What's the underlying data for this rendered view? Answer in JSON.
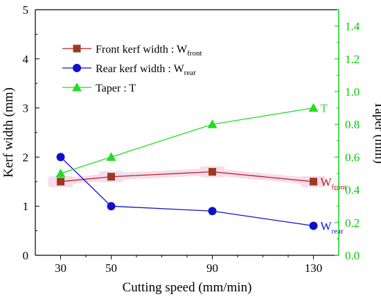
{
  "colors": {
    "front": "#b22222",
    "front_marker": "#9b3a1e",
    "rear": "#1010cc",
    "taper": "#22dd22",
    "taper_axis": "#00cc00",
    "highlight": "#f7dcec",
    "axis": "#000000"
  },
  "chart_data": {
    "type": "line",
    "x": [
      30,
      50,
      90,
      130
    ],
    "xlabel": "Cutting speed (mm/min)",
    "ylabel": "Kerf width (mm)",
    "y2label": "Taper (mm)",
    "xlim": [
      20,
      140
    ],
    "ylim": [
      0,
      5
    ],
    "y2lim": [
      0.0,
      1.5
    ],
    "xticks": [
      "30",
      "50",
      "90",
      "130"
    ],
    "yticks": [
      "0",
      "1",
      "2",
      "3",
      "4",
      "5"
    ],
    "y2ticks": [
      "0.0",
      "0.2",
      "0.4",
      "0.6",
      "0.8",
      "1.0",
      "1.2",
      "1.4"
    ],
    "series": [
      {
        "key": "front",
        "name": "Front kerf width : W",
        "name_sub": "front",
        "axis": "left",
        "marker": "square",
        "values": [
          1.5,
          1.6,
          1.7,
          1.5
        ],
        "end_label": "W",
        "end_label_sub": "front"
      },
      {
        "key": "rear",
        "name": "Rear kerf width : W",
        "name_sub": "rear",
        "axis": "left",
        "marker": "circle",
        "values": [
          2.0,
          1.0,
          0.9,
          0.6
        ],
        "end_label": "W",
        "end_label_sub": "rear"
      },
      {
        "key": "taper",
        "name": "Taper : T",
        "name_sub": "",
        "axis": "right",
        "marker": "triangle",
        "values": [
          0.5,
          0.6,
          0.8,
          0.9
        ],
        "end_label": "T",
        "end_label_sub": ""
      }
    ],
    "legend_position": "top-left",
    "grid": false
  }
}
